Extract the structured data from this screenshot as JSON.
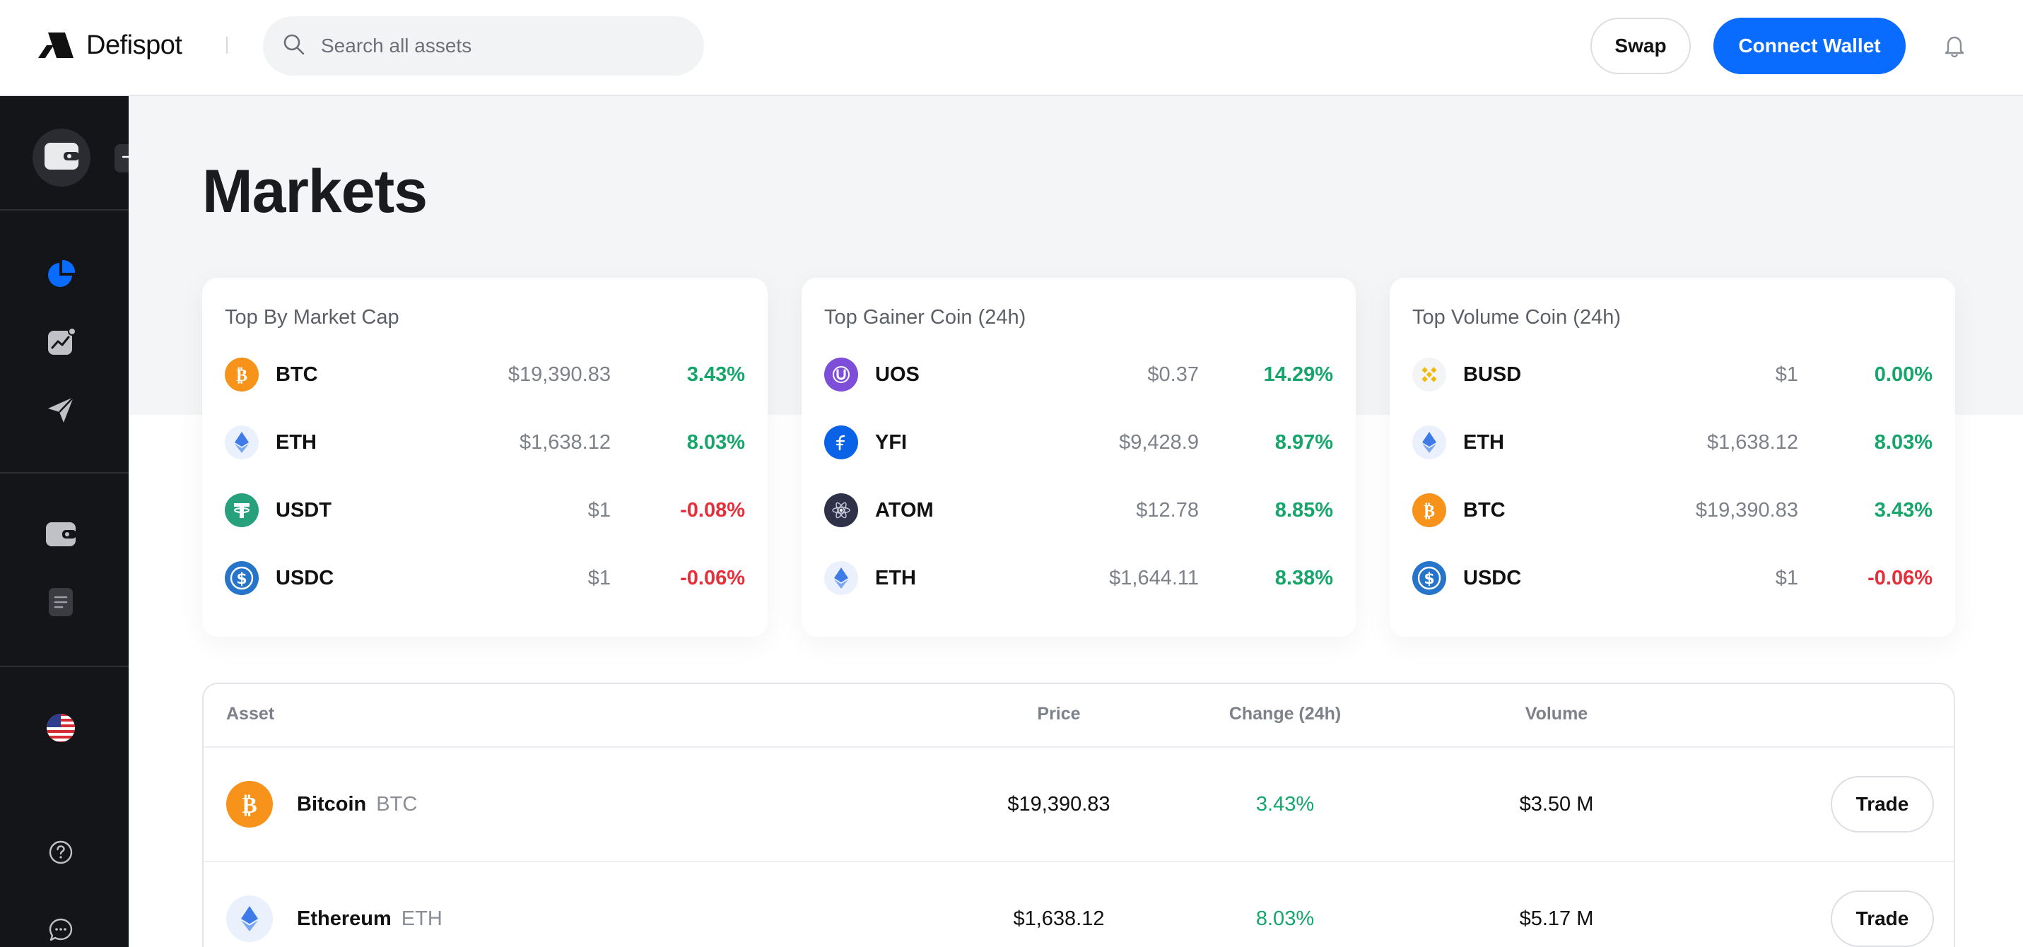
{
  "header": {
    "brand": "Defispot",
    "search_placeholder": "Search all assets",
    "swap_label": "Swap",
    "connect_label": "Connect Wallet"
  },
  "page": {
    "title": "Markets"
  },
  "cards": [
    {
      "title": "Top By Market Cap",
      "rows": [
        {
          "symbol": "BTC",
          "price": "$19,390.83",
          "change": "3.43%",
          "icon": "btc-icon"
        },
        {
          "symbol": "ETH",
          "price": "$1,638.12",
          "change": "8.03%",
          "icon": "eth-icon"
        },
        {
          "symbol": "USDT",
          "price": "$1",
          "change": "-0.08%",
          "icon": "usdt-icon"
        },
        {
          "symbol": "USDC",
          "price": "$1",
          "change": "-0.06%",
          "icon": "usdc-icon"
        }
      ]
    },
    {
      "title": "Top Gainer Coin (24h)",
      "rows": [
        {
          "symbol": "UOS",
          "price": "$0.37",
          "change": "14.29%",
          "icon": "uos-icon"
        },
        {
          "symbol": "YFI",
          "price": "$9,428.9",
          "change": "8.97%",
          "icon": "yfi-icon"
        },
        {
          "symbol": "ATOM",
          "price": "$12.78",
          "change": "8.85%",
          "icon": "atom-icon"
        },
        {
          "symbol": "ETH",
          "price": "$1,644.11",
          "change": "8.38%",
          "icon": "eth-icon"
        }
      ]
    },
    {
      "title": "Top Volume Coin (24h)",
      "rows": [
        {
          "symbol": "BUSD",
          "price": "$1",
          "change": "0.00%",
          "icon": "busd-icon"
        },
        {
          "symbol": "ETH",
          "price": "$1,638.12",
          "change": "8.03%",
          "icon": "eth-icon"
        },
        {
          "symbol": "BTC",
          "price": "$19,390.83",
          "change": "3.43%",
          "icon": "btc-icon"
        },
        {
          "symbol": "USDC",
          "price": "$1",
          "change": "-0.06%",
          "icon": "usdc-icon"
        }
      ]
    }
  ],
  "table": {
    "headers": {
      "asset": "Asset",
      "price": "Price",
      "change": "Change (24h)",
      "volume": "Volume"
    },
    "rows": [
      {
        "name": "Bitcoin",
        "symbol": "BTC",
        "price": "$19,390.83",
        "change": "3.43%",
        "volume": "$3.50 M",
        "action": "Trade",
        "icon": "btc-icon"
      },
      {
        "name": "Ethereum",
        "symbol": "ETH",
        "price": "$1,638.12",
        "change": "8.03%",
        "volume": "$5.17 M",
        "action": "Trade",
        "icon": "eth-icon"
      }
    ]
  },
  "colors": {
    "accent": "#0a6cff",
    "positive": "#16a56b",
    "negative": "#e5303b",
    "sidebar": "#141518"
  }
}
